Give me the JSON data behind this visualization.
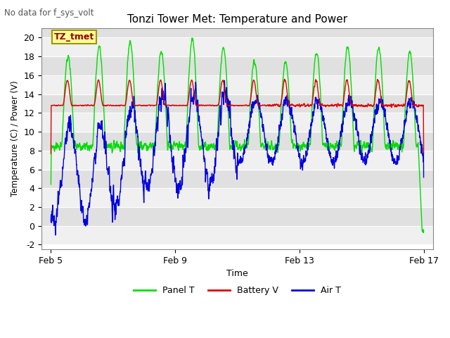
{
  "title": "Tonzi Tower Met: Temperature and Power",
  "subtitle": "No data for f_sys_volt",
  "xlabel": "Time",
  "ylabel": "Temperature (C) / Power (V)",
  "xlim_days": [
    4.7,
    17.3
  ],
  "ylim": [
    -2.5,
    21
  ],
  "yticks": [
    -2,
    0,
    2,
    4,
    6,
    8,
    10,
    12,
    14,
    16,
    18,
    20
  ],
  "xtick_positions": [
    5,
    9,
    13,
    17
  ],
  "xtick_labels": [
    "Feb 5",
    "Feb 9",
    "Feb 13",
    "Feb 17"
  ],
  "annotation_text": "TZ_tmet",
  "bg_color": "#ffffff",
  "panel_color": "#00dd00",
  "battery_color": "#dd0000",
  "air_color": "#0000dd",
  "band_light": "#f0f0f0",
  "band_dark": "#e0e0e0"
}
